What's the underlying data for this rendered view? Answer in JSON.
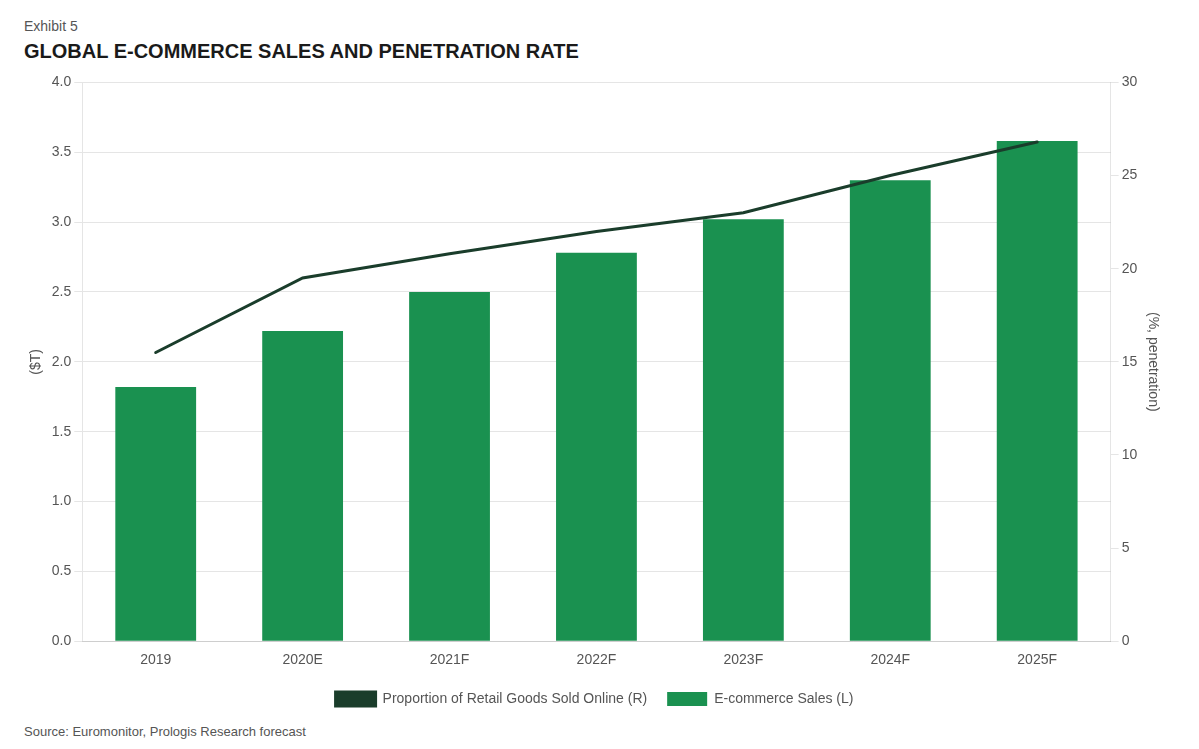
{
  "chart_data": {
    "type": "bar",
    "subtitle": "Exhibit 5",
    "title": "GLOBAL E-COMMERCE SALES AND PENETRATION RATE",
    "y_label": "($T)",
    "y2_label": "(%, penetration)",
    "annotations": [
      "Source: Euromonitor, Prologis Research forecast"
    ],
    "categories": [
      "2019",
      "2020E",
      "2021F",
      "2022F",
      "2023F",
      "2024F",
      "2025F"
    ],
    "series": [
      {
        "name": "E-commerce Sales (L)",
        "type": "bar",
        "color": "#1a9150",
        "values": [
          1.82,
          2.22,
          2.5,
          2.78,
          3.02,
          3.3,
          3.58
        ]
      },
      {
        "name": "Proportion of Retail Goods Sold Online (R)",
        "type": "line",
        "axis": "y2",
        "color": "#1a3d2b",
        "values": [
          15.5,
          19.5,
          20.8,
          22.0,
          23.0,
          25.0,
          26.8
        ]
      }
    ],
    "ylim": [
      0,
      4.0
    ],
    "yticks": [
      {
        "value": 0.0,
        "label": "0.0"
      },
      0.5,
      {
        "value": 1.0,
        "label": "1.0"
      },
      1.5,
      {
        "value": 2.0,
        "label": "2.0"
      },
      2.5,
      {
        "value": 3.0,
        "label": "3.0"
      },
      3.5,
      {
        "value": 4.0,
        "label": "4.0"
      }
    ],
    "y2lim": [
      0,
      30
    ],
    "y2ticks": [
      0,
      5,
      10,
      15,
      20,
      25,
      30
    ],
    "grid": true,
    "legend": "bottom"
  }
}
